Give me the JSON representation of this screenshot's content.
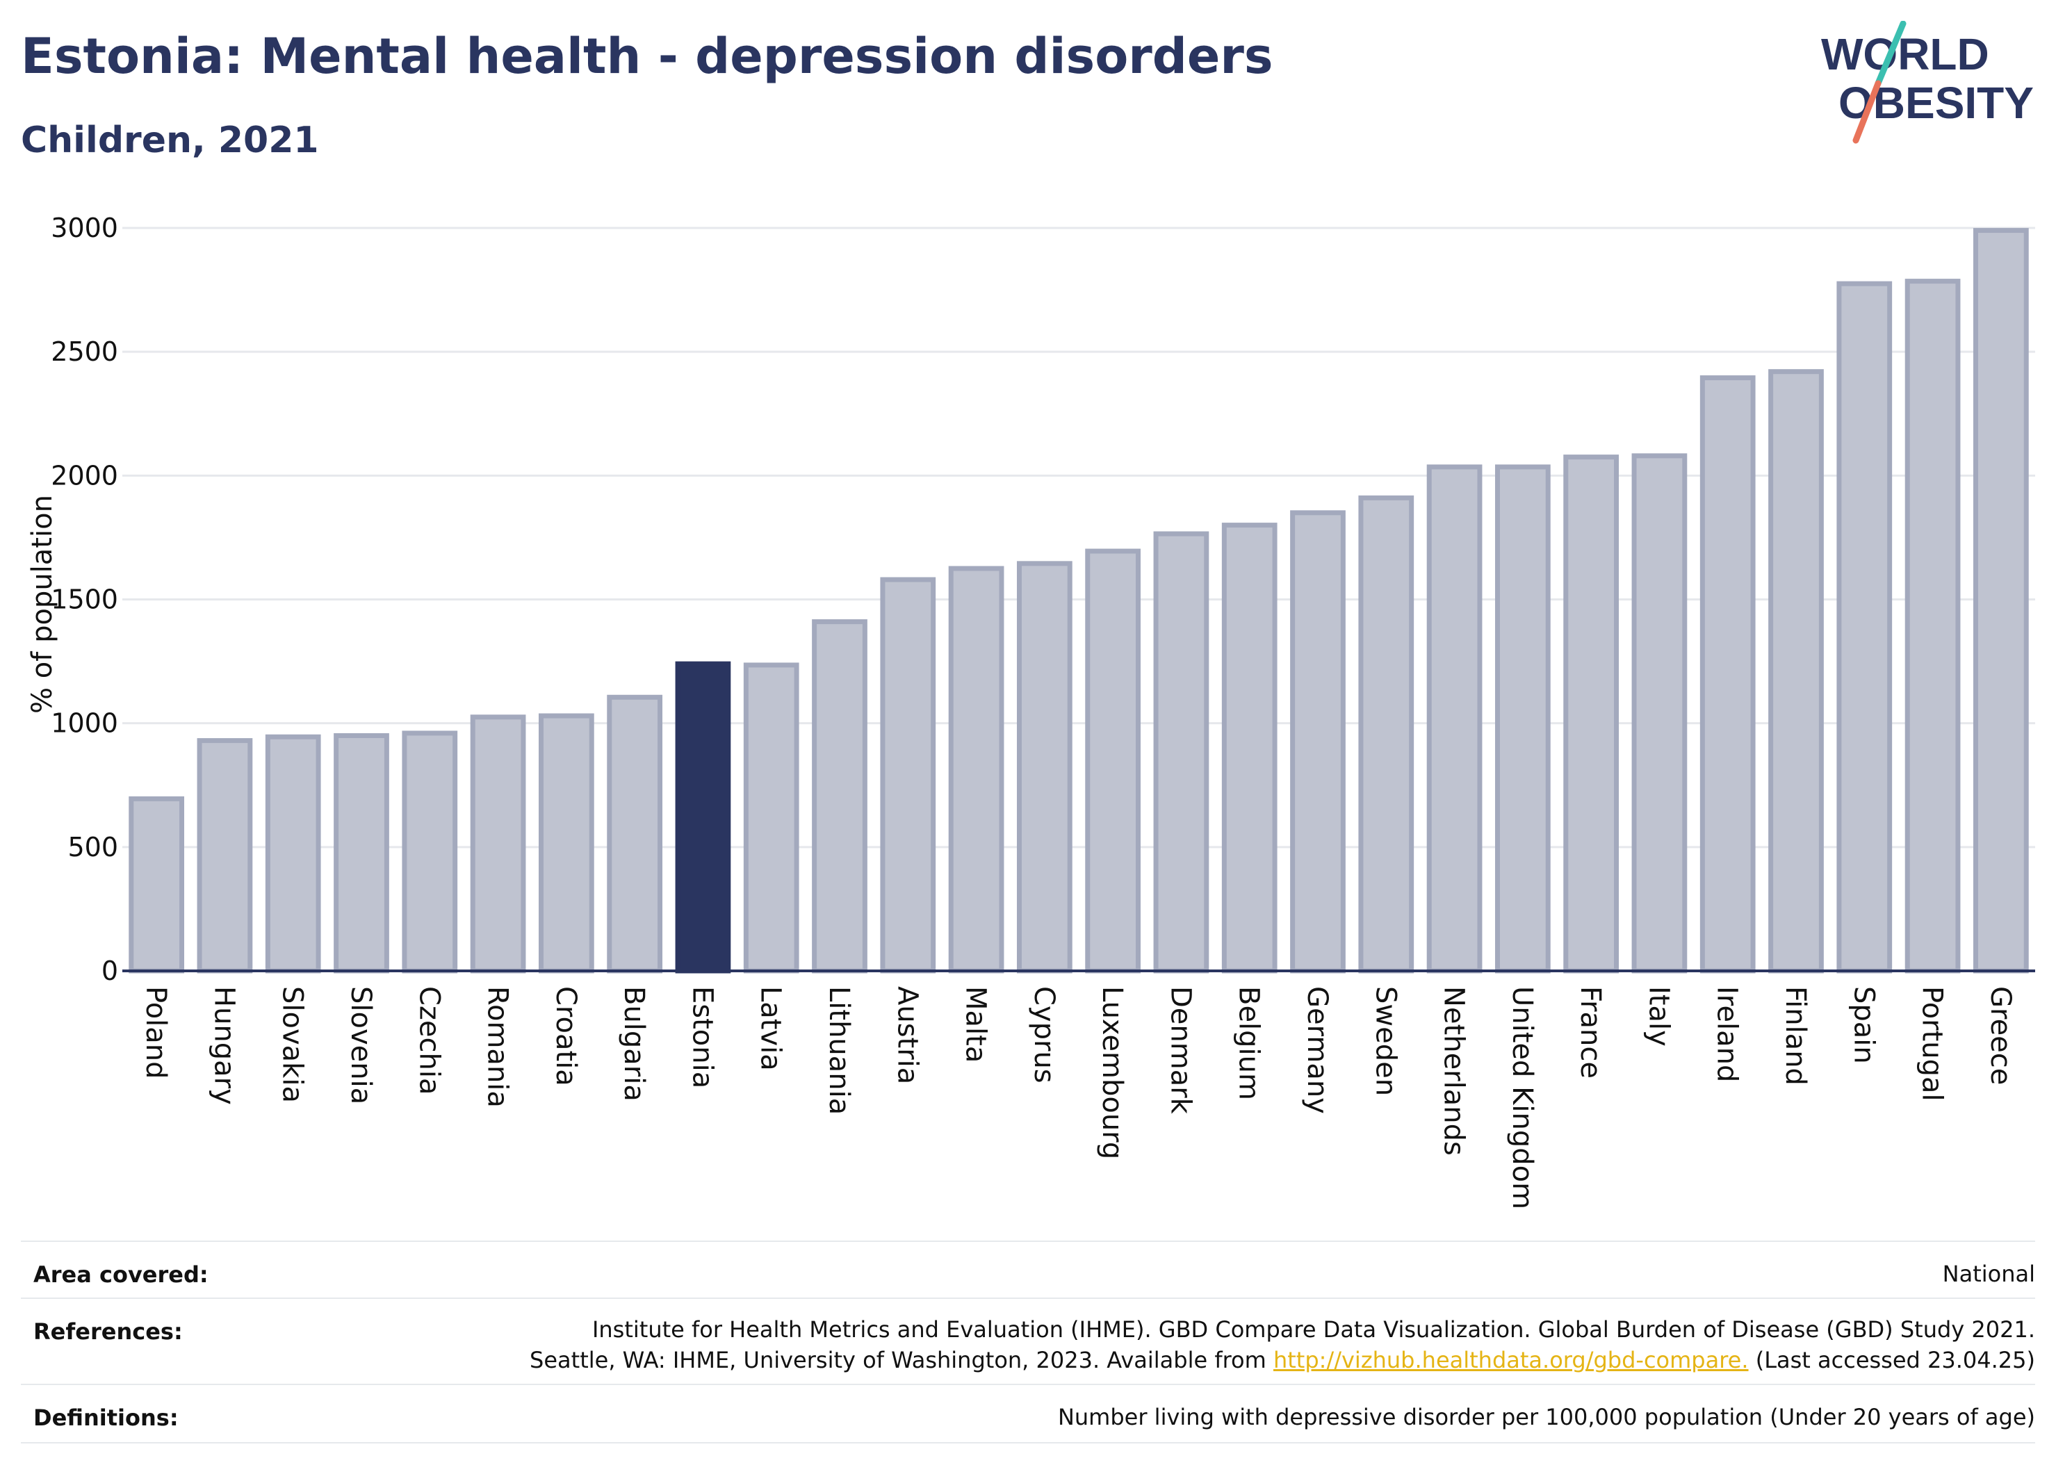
{
  "header": {
    "title": "Estonia: Mental health - depression disorders",
    "subtitle": "Children, 2021"
  },
  "logo": {
    "text_line1": "WORLD",
    "text_line2": "OBESITY",
    "colors": {
      "text": "#2a3560",
      "slash_top": "#3bbfb0",
      "slash_bottom": "#e8735a"
    }
  },
  "chart_data": {
    "type": "bar",
    "ylabel": "% of population",
    "xlabel": "",
    "ylim": [
      0,
      3000
    ],
    "yticks": [
      0,
      500,
      1000,
      1500,
      2000,
      2500,
      3000
    ],
    "grid": true,
    "highlight": "Estonia",
    "colors": {
      "bar": "#bfc3d0",
      "bar_edge": "#a3a9bd",
      "highlight": "#2a3560",
      "grid": "#e6e8ec",
      "axis": "#2a3560"
    },
    "categories": [
      "Poland",
      "Hungary",
      "Slovakia",
      "Slovenia",
      "Czechia",
      "Romania",
      "Croatia",
      "Bulgaria",
      "Estonia",
      "Latvia",
      "Lithuania",
      "Austria",
      "Malta",
      "Cyprus",
      "Luxembourg",
      "Denmark",
      "Belgium",
      "Germany",
      "Sweden",
      "Netherlands",
      "United Kingdom",
      "France",
      "Italy",
      "Ireland",
      "Finland",
      "Spain",
      "Portugal",
      "Greece"
    ],
    "values": [
      695,
      930,
      945,
      950,
      960,
      1025,
      1030,
      1105,
      1240,
      1235,
      1410,
      1580,
      1625,
      1645,
      1695,
      1765,
      1800,
      1850,
      1910,
      2035,
      2035,
      2075,
      2080,
      2395,
      2420,
      2775,
      2785,
      2990
    ]
  },
  "footer": {
    "area_label": "Area covered:",
    "area_value": "National",
    "references_label": "References:",
    "references_line1": "Institute for Health Metrics and Evaluation (IHME). GBD Compare Data Visualization. Global Burden of Disease (GBD) Study 2021.",
    "references_line2_pre": "Seattle, WA: IHME, University of Washington, 2023. Available from ",
    "references_link": "http://vizhub.healthdata.org/gbd-compare.",
    "references_line2_post": " (Last accessed 23.04.25)",
    "definitions_label": "Definitions:",
    "definitions_value": "Number living with depressive disorder per 100,000 population (Under 20 years of age)"
  }
}
